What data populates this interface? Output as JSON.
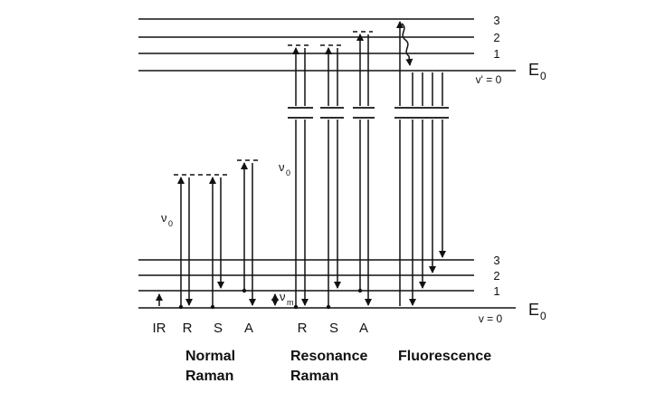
{
  "excited_state": {
    "levels": [
      "3",
      "2",
      "1"
    ],
    "v_label": "v' = 0",
    "energy_label_main": "E",
    "energy_label_sub": "0"
  },
  "ground_state": {
    "levels": [
      "3",
      "2",
      "1"
    ],
    "v_label": "v = 0",
    "energy_label_main": "E",
    "energy_label_sub": "0"
  },
  "annotations": {
    "nu0_main": "ν",
    "nu0_sub": "0",
    "num_main": "ν",
    "num_sub": "m"
  },
  "transitions": {
    "normal": [
      "IR",
      "R",
      "S",
      "A"
    ],
    "resonance": [
      "R",
      "S",
      "A"
    ]
  },
  "sections": {
    "normal_line1": "Normal",
    "normal_line2": "Raman",
    "resonance_line1": "Resonance",
    "resonance_line2": "Raman",
    "fluorescence": "Fluorescence"
  }
}
